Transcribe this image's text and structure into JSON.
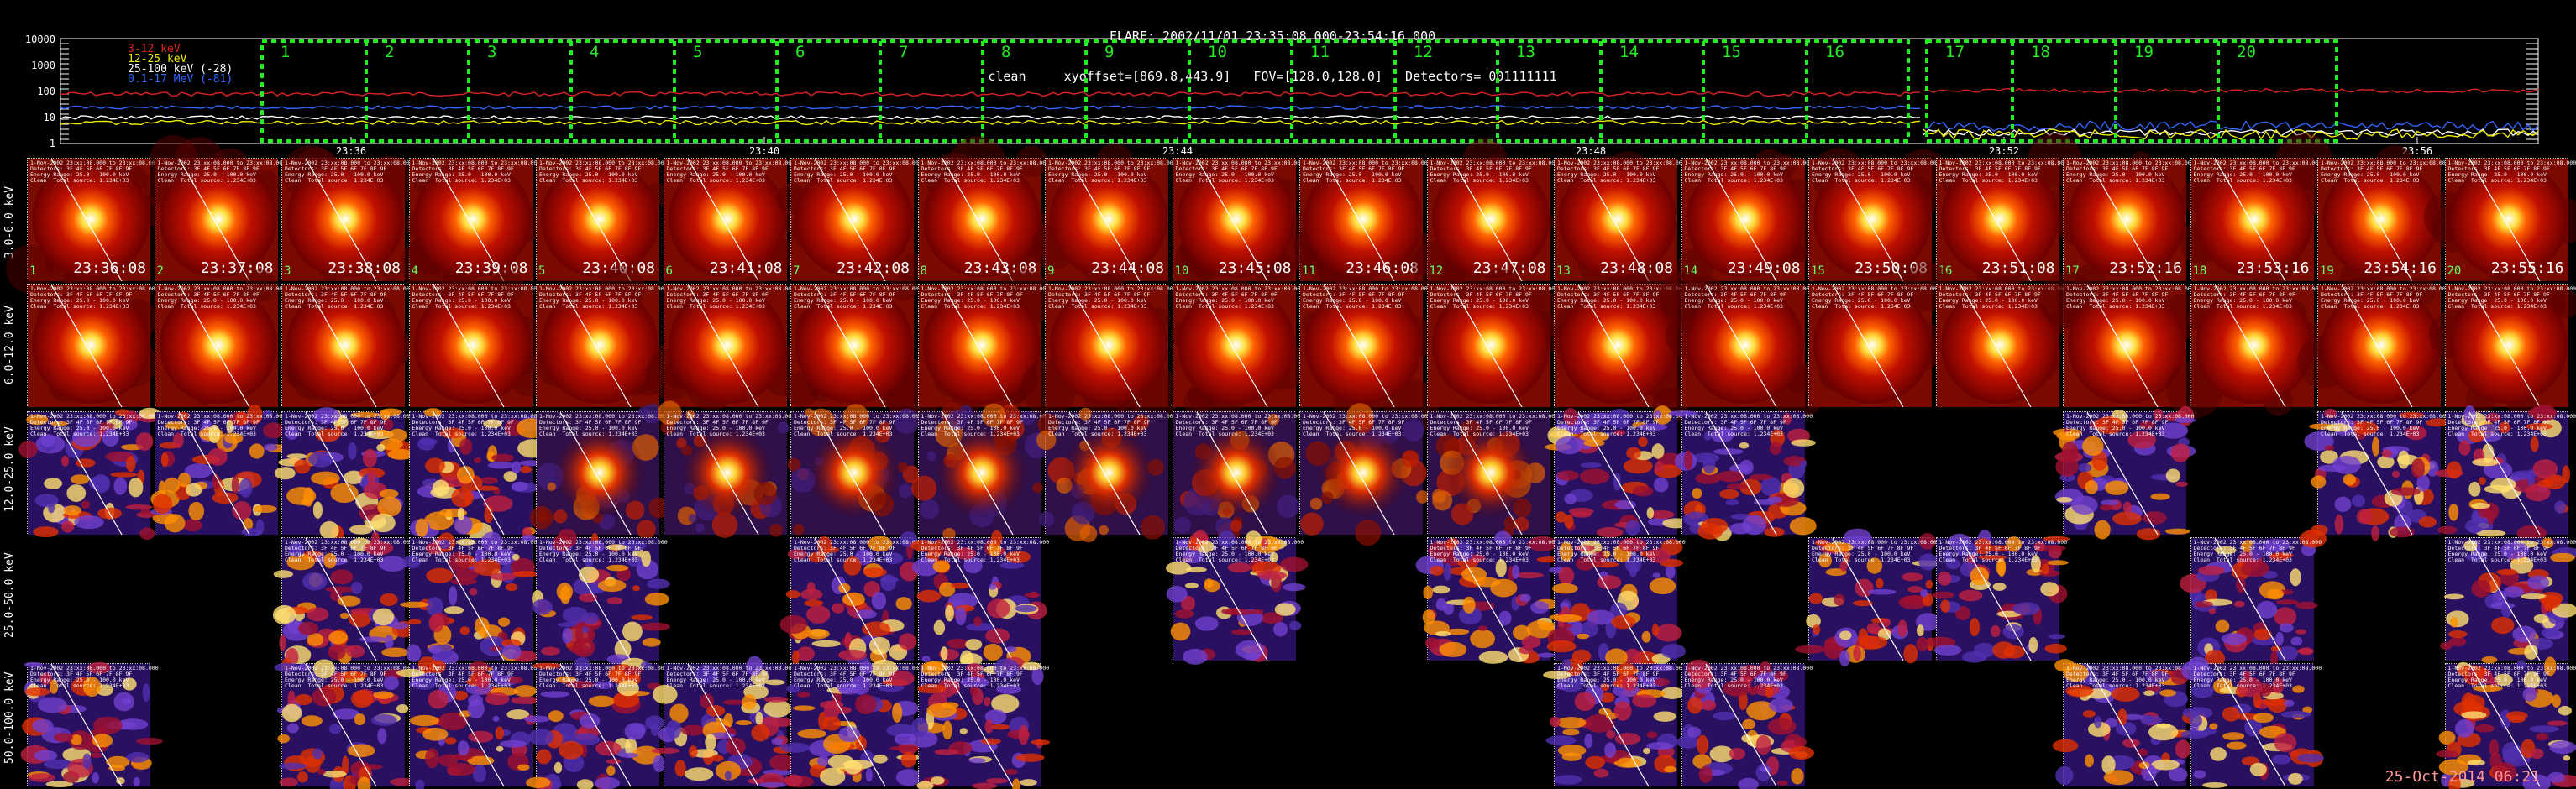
{
  "header": {
    "line1": "FLARE: 2002/11/01 23:35:08.000-23:54:16.000",
    "line2": "clean     xyoffset=[869.8,443.9]   FOV=[128.0,128.0]   Detectors= 001111111"
  },
  "lightcurve": {
    "ylabels": [
      "10000",
      "1000",
      "100",
      "10",
      "1"
    ],
    "xlabels": [
      "23:36",
      "23:40",
      "23:44",
      "23:48",
      "23:52",
      "23:56"
    ],
    "legend": [
      {
        "label": "3-12 keV",
        "color": "#d22"
      },
      {
        "label": "12-25 keV",
        "color": "#ee0"
      },
      {
        "label": "25-100 keV (-28)",
        "color": "#fff"
      },
      {
        "label": "0.1-17 MeV (-81)",
        "color": "#36f"
      }
    ],
    "intervals": [
      "1",
      "2",
      "3",
      "4",
      "5",
      "6",
      "7",
      "8",
      "9",
      "10",
      "11",
      "12",
      "13",
      "14",
      "15",
      "16",
      "17",
      "18",
      "19",
      "20"
    ]
  },
  "rows": [
    {
      "label": "3.0-6.0 keV"
    },
    {
      "label": "6.0-12.0 keV"
    },
    {
      "label": "12.0-25.0 keV"
    },
    {
      "label": "25.0-50.0 keV"
    },
    {
      "label": "50.0-100.0 keV"
    }
  ],
  "times": [
    "23:36:08",
    "23:37:08",
    "23:38:08",
    "23:39:08",
    "23:40:08",
    "23:41:08",
    "23:42:08",
    "23:43:08",
    "23:44:08",
    "23:45:08",
    "23:46:08",
    "23:47:08",
    "23:48:08",
    "23:49:08",
    "23:50:08",
    "23:51:08",
    "23:52:16",
    "23:53:16",
    "23:54:16",
    "23:55:16"
  ],
  "tile_header": {
    "l1": "1-Nov-2002 23:xx:08.000 to 23:xx:08.000",
    "l2": "Detectors: 3F 4F 5F 6F 7F 8F 9F",
    "l3": "Energy Range: 25.0 - 100.0 keV",
    "l4": "Clean  Total source: 1.234E+03"
  },
  "stamp": "25-Oct-2014 06:21",
  "colors": {
    "interval_box": "#22ee22",
    "index": "#66ff66"
  }
}
